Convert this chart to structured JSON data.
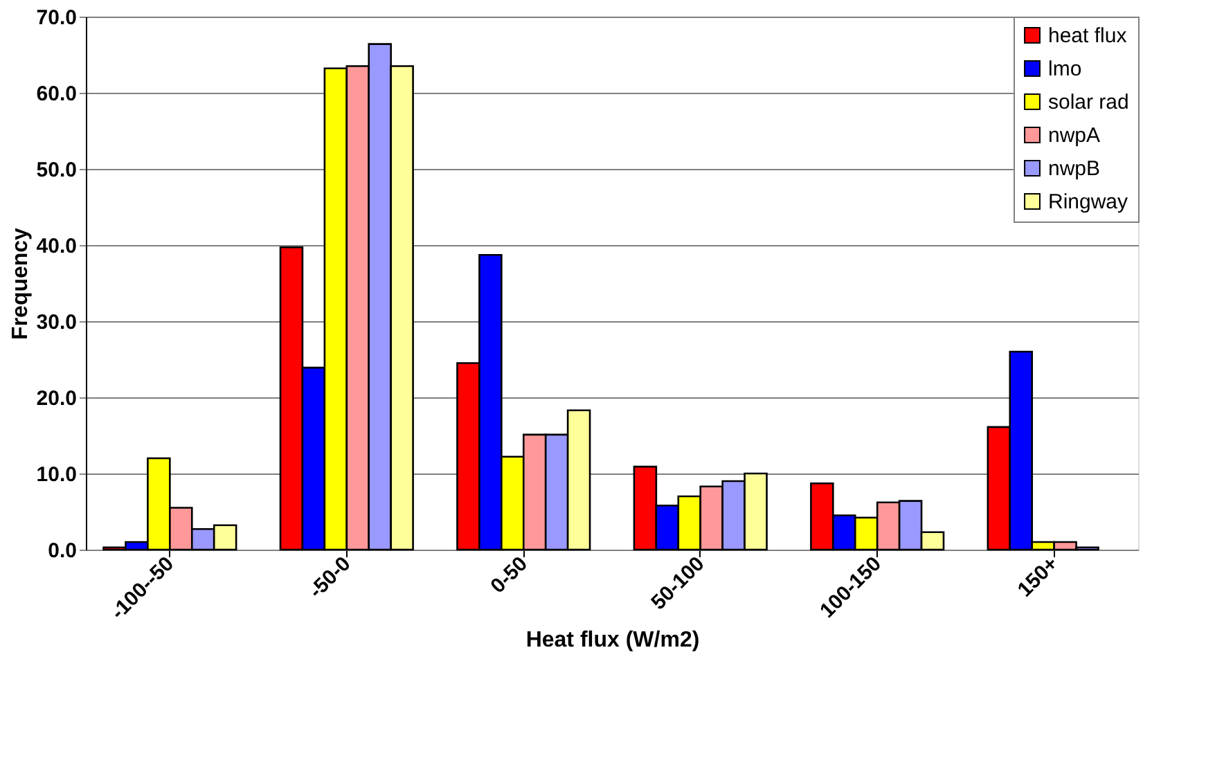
{
  "chart_data": {
    "type": "bar",
    "xlabel": "Heat flux (W/m2)",
    "ylabel": "Frequency",
    "categories": [
      "-100--50",
      "-50-0",
      "0-50",
      "50-100",
      "100-150",
      "150+"
    ],
    "series": [
      {
        "name": "heat flux",
        "color": "#ff0000",
        "values": [
          0.3,
          39.7,
          24.5,
          10.9,
          8.7,
          16.1
        ]
      },
      {
        "name": "lmo",
        "color": "#0000ff",
        "values": [
          1.0,
          23.9,
          38.7,
          5.8,
          4.5,
          26.0
        ]
      },
      {
        "name": "solar rad",
        "color": "#ffff00",
        "values": [
          12.0,
          63.2,
          12.2,
          7.0,
          4.2,
          1.0
        ]
      },
      {
        "name": "nwpA",
        "color": "#ff9999",
        "values": [
          5.5,
          63.5,
          15.1,
          8.3,
          6.2,
          1.0
        ]
      },
      {
        "name": "nwpB",
        "color": "#9999ff",
        "values": [
          2.7,
          66.4,
          15.1,
          9.0,
          6.4,
          0.3
        ]
      },
      {
        "name": "Ringway",
        "color": "#ffff99",
        "values": [
          3.2,
          63.5,
          18.3,
          10.0,
          2.3,
          null
        ]
      }
    ],
    "ylim": [
      0,
      70
    ],
    "yticks": [
      {
        "value": 0,
        "label": "0.0"
      },
      {
        "value": 10,
        "label": "10.0"
      },
      {
        "value": 20,
        "label": "20.0"
      },
      {
        "value": 30,
        "label": "30.0"
      },
      {
        "value": 40,
        "label": "40.0"
      },
      {
        "value": 50,
        "label": "50.0"
      },
      {
        "value": 60,
        "label": "60.0"
      },
      {
        "value": 70,
        "label": "70.0"
      }
    ],
    "grid": "y",
    "legend": "top right"
  }
}
